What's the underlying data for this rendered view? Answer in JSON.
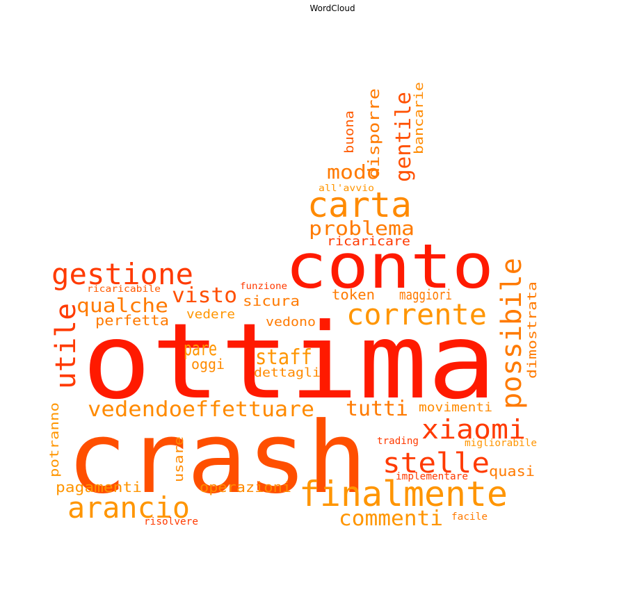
{
  "title": "WordCloud",
  "colors": {
    "red": "#ff1a00",
    "red_orange": "#ff3a00",
    "orange_red": "#ff5a00",
    "orange": "#ff7a00",
    "amber": "#ff9500"
  },
  "words": [
    {
      "id": "ottima",
      "text": "ottima"
    },
    {
      "id": "crash",
      "text": "crash"
    },
    {
      "id": "conto",
      "text": "conto"
    },
    {
      "id": "finalmente",
      "text": "finalmente"
    },
    {
      "id": "carta",
      "text": "carta"
    },
    {
      "id": "gestione",
      "text": "gestione"
    },
    {
      "id": "arancio",
      "text": "arancio"
    },
    {
      "id": "corrente",
      "text": "corrente"
    },
    {
      "id": "possibile",
      "text": "possibile"
    },
    {
      "id": "utile",
      "text": "utile"
    },
    {
      "id": "stelle",
      "text": "stelle"
    },
    {
      "id": "xiaomi",
      "text": "xiaomi"
    },
    {
      "id": "effettuare",
      "text": "effettuare"
    },
    {
      "id": "vedendo",
      "text": "vedendo"
    },
    {
      "id": "commenti",
      "text": "commenti"
    },
    {
      "id": "tutti",
      "text": "tutti"
    },
    {
      "id": "problema",
      "text": "problema"
    },
    {
      "id": "qualche",
      "text": "qualche"
    },
    {
      "id": "visto",
      "text": "visto"
    },
    {
      "id": "staff",
      "text": "staff"
    },
    {
      "id": "gentile",
      "text": "gentile"
    },
    {
      "id": "modo",
      "text": "modo"
    },
    {
      "id": "pare",
      "text": "pare"
    },
    {
      "id": "disporre",
      "text": "disporre"
    },
    {
      "id": "dimostrata",
      "text": "dimostrata"
    },
    {
      "id": "bancarie",
      "text": "bancarie"
    },
    {
      "id": "pagamenti",
      "text": "pagamenti"
    },
    {
      "id": "operazioni",
      "text": "operazioni"
    },
    {
      "id": "maggiori",
      "text": "maggiori"
    },
    {
      "id": "quasi",
      "text": "quasi"
    },
    {
      "id": "sicura",
      "text": "sicura"
    },
    {
      "id": "perfetta",
      "text": "perfetta"
    },
    {
      "id": "ricaricare",
      "text": "ricaricare"
    },
    {
      "id": "potranno",
      "text": "potranno"
    },
    {
      "id": "buona",
      "text": "buona"
    },
    {
      "id": "token",
      "text": "token"
    },
    {
      "id": "movimenti",
      "text": "movimenti"
    },
    {
      "id": "dettagli",
      "text": "dettagli"
    },
    {
      "id": "usare",
      "text": "usare"
    },
    {
      "id": "vedere",
      "text": "vedere"
    },
    {
      "id": "oggi",
      "text": "oggi"
    },
    {
      "id": "vedono",
      "text": "vedono"
    },
    {
      "id": "implementare",
      "text": "implementare"
    },
    {
      "id": "facile",
      "text": "facile"
    },
    {
      "id": "trading",
      "text": "trading"
    },
    {
      "id": "risolvere",
      "text": "risolvere"
    },
    {
      "id": "migliorabile",
      "text": "migliorabile"
    },
    {
      "id": "funzione",
      "text": "funzione"
    },
    {
      "id": "ricaricabile",
      "text": "ricaricabile"
    },
    {
      "id": "all_avvio",
      "text": "all'avvio"
    }
  ]
}
